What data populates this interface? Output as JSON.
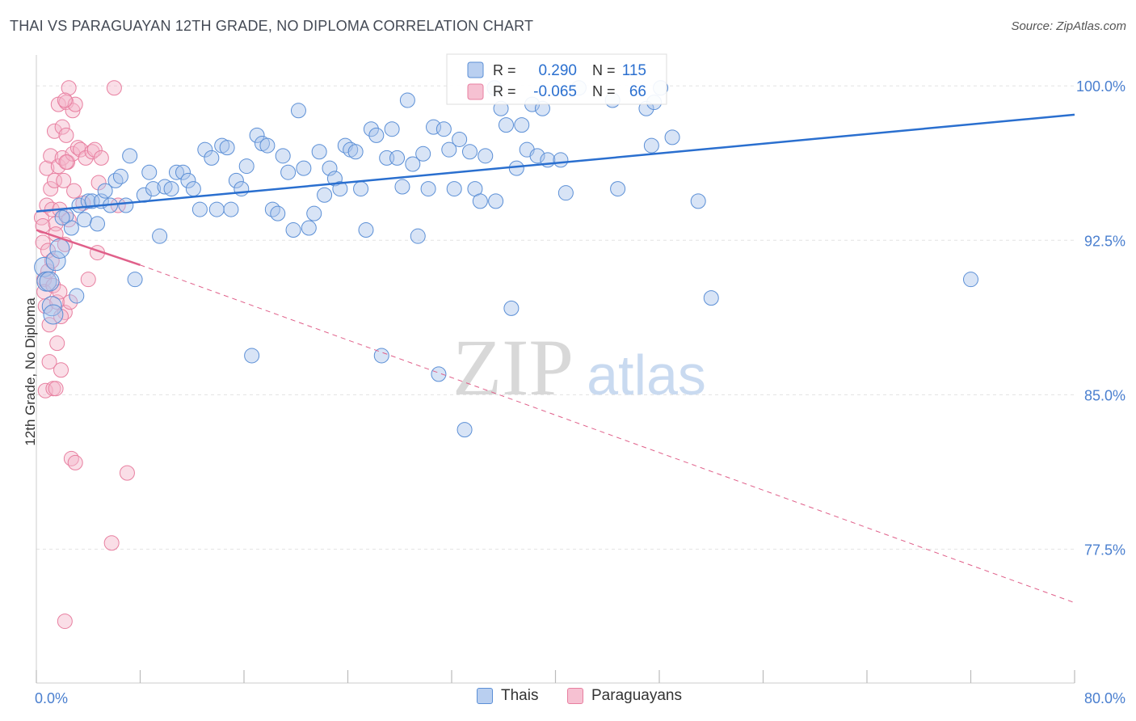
{
  "header": {
    "title": "THAI VS PARAGUAYAN 12TH GRADE, NO DIPLOMA CORRELATION CHART",
    "source": "Source: ZipAtlas.com"
  },
  "watermark": {
    "zip": "ZIP",
    "atlas": "atlas"
  },
  "colors": {
    "blue": "#5b8fd6",
    "blue_line": "#2a6fcf",
    "pink": "#e87fa0",
    "pink_line": "#e0608a",
    "axis_text": "#4a7fcf"
  },
  "legend_top": {
    "rows": [
      {
        "r_label": "R =",
        "r_value": "0.290",
        "n_label": "N =",
        "n_value": "115"
      },
      {
        "r_label": "R =",
        "r_value": "-0.065",
        "n_label": "N =",
        "n_value": "66"
      }
    ]
  },
  "legend_bottom": {
    "items": [
      "Thais",
      "Paraguayans"
    ]
  },
  "chart_data": {
    "type": "scatter",
    "title": "THAI VS PARAGUAYAN 12TH GRADE, NO DIPLOMA CORRELATION CHART",
    "xlabel": "",
    "ylabel": "12th Grade, No Diploma",
    "xlim": [
      0,
      80
    ],
    "ylim": [
      71.0,
      101.5
    ],
    "x_tick_labels": [
      "0.0%",
      "80.0%"
    ],
    "y_ticks": [
      100.0,
      92.5,
      85.0,
      77.5
    ],
    "y_tick_labels": [
      "100.0%",
      "92.5%",
      "85.0%",
      "77.5%"
    ],
    "grid": true,
    "series": [
      {
        "name": "Thais",
        "color": "#5b8fd6",
        "points": [
          [
            0.6,
            91.2
          ],
          [
            0.8,
            90.5
          ],
          [
            1.2,
            89.3
          ],
          [
            1.5,
            91.5
          ],
          [
            1.8,
            92.1
          ],
          [
            2.3,
            93.7
          ],
          [
            2.7,
            93.1
          ],
          [
            3.1,
            89.8
          ],
          [
            3.3,
            94.2
          ],
          [
            3.7,
            93.5
          ],
          [
            4.0,
            94.4
          ],
          [
            4.3,
            94.4
          ],
          [
            4.7,
            93.3
          ],
          [
            5.0,
            94.4
          ],
          [
            5.3,
            94.9
          ],
          [
            5.7,
            94.2
          ],
          [
            6.1,
            95.4
          ],
          [
            6.5,
            95.6
          ],
          [
            6.9,
            94.2
          ],
          [
            7.2,
            96.6
          ],
          [
            7.6,
            90.6
          ],
          [
            8.3,
            94.7
          ],
          [
            8.7,
            95.8
          ],
          [
            9.0,
            95.0
          ],
          [
            9.5,
            92.7
          ],
          [
            9.9,
            95.1
          ],
          [
            10.4,
            95.0
          ],
          [
            10.8,
            95.8
          ],
          [
            11.3,
            95.8
          ],
          [
            11.7,
            95.4
          ],
          [
            12.1,
            95.0
          ],
          [
            12.6,
            94.0
          ],
          [
            13.0,
            96.9
          ],
          [
            13.5,
            96.5
          ],
          [
            13.9,
            94.0
          ],
          [
            14.3,
            97.1
          ],
          [
            14.7,
            97.0
          ],
          [
            15.0,
            94.0
          ],
          [
            15.4,
            95.4
          ],
          [
            15.8,
            95.0
          ],
          [
            16.2,
            96.1
          ],
          [
            16.6,
            86.9
          ],
          [
            17.0,
            97.6
          ],
          [
            17.4,
            97.2
          ],
          [
            17.8,
            97.1
          ],
          [
            18.2,
            94.0
          ],
          [
            18.6,
            93.8
          ],
          [
            19.0,
            96.6
          ],
          [
            19.4,
            95.8
          ],
          [
            19.8,
            93.0
          ],
          [
            20.2,
            98.8
          ],
          [
            20.6,
            96.0
          ],
          [
            21.0,
            93.1
          ],
          [
            21.4,
            93.8
          ],
          [
            21.8,
            96.8
          ],
          [
            22.2,
            94.7
          ],
          [
            22.6,
            96.0
          ],
          [
            23.0,
            95.5
          ],
          [
            23.4,
            95.0
          ],
          [
            23.8,
            97.1
          ],
          [
            24.2,
            96.9
          ],
          [
            24.6,
            96.8
          ],
          [
            25.0,
            95.0
          ],
          [
            25.4,
            93.0
          ],
          [
            25.8,
            97.9
          ],
          [
            26.2,
            97.6
          ],
          [
            26.6,
            86.9
          ],
          [
            27.0,
            96.5
          ],
          [
            27.4,
            97.9
          ],
          [
            27.8,
            96.5
          ],
          [
            28.2,
            95.1
          ],
          [
            28.6,
            99.3
          ],
          [
            29.0,
            96.2
          ],
          [
            29.4,
            92.7
          ],
          [
            29.8,
            96.7
          ],
          [
            30.2,
            95.0
          ],
          [
            30.6,
            98.0
          ],
          [
            31.0,
            86.0
          ],
          [
            31.4,
            97.9
          ],
          [
            31.8,
            96.9
          ],
          [
            32.2,
            95.0
          ],
          [
            32.6,
            97.4
          ],
          [
            33.0,
            83.3
          ],
          [
            33.4,
            96.8
          ],
          [
            33.8,
            95.0
          ],
          [
            34.2,
            94.4
          ],
          [
            34.6,
            96.6
          ],
          [
            35.4,
            94.4
          ],
          [
            35.8,
            98.9
          ],
          [
            36.2,
            98.1
          ],
          [
            36.6,
            89.2
          ],
          [
            37.0,
            96.0
          ],
          [
            37.4,
            98.1
          ],
          [
            37.8,
            96.9
          ],
          [
            38.2,
            99.1
          ],
          [
            38.6,
            96.6
          ],
          [
            39.0,
            98.9
          ],
          [
            39.4,
            96.4
          ],
          [
            40.4,
            96.4
          ],
          [
            40.8,
            94.8
          ],
          [
            41.8,
            99.9
          ],
          [
            44.4,
            99.3
          ],
          [
            44.8,
            95.0
          ],
          [
            47.0,
            98.9
          ],
          [
            47.4,
            97.1
          ],
          [
            47.6,
            99.2
          ],
          [
            48.1,
            99.9
          ],
          [
            49.0,
            97.5
          ],
          [
            51.0,
            94.4
          ],
          [
            52.0,
            89.7
          ],
          [
            72.0,
            90.6
          ],
          [
            1.0,
            90.5
          ],
          [
            1.3,
            88.9
          ],
          [
            2.0,
            93.6
          ],
          [
            35.3,
            99.9
          ]
        ]
      },
      {
        "name": "Paraguayans",
        "color": "#e87fa0",
        "points": [
          [
            0.4,
            93.6
          ],
          [
            0.5,
            93.2
          ],
          [
            0.5,
            92.4
          ],
          [
            0.6,
            90.6
          ],
          [
            0.6,
            90.0
          ],
          [
            0.7,
            89.3
          ],
          [
            0.7,
            85.2
          ],
          [
            0.8,
            96.0
          ],
          [
            0.8,
            94.2
          ],
          [
            0.9,
            92.0
          ],
          [
            0.9,
            91.0
          ],
          [
            1.0,
            88.4
          ],
          [
            1.0,
            86.6
          ],
          [
            1.1,
            96.6
          ],
          [
            1.1,
            95.0
          ],
          [
            1.2,
            94.0
          ],
          [
            1.2,
            91.5
          ],
          [
            1.3,
            90.3
          ],
          [
            1.3,
            85.3
          ],
          [
            1.4,
            97.8
          ],
          [
            1.4,
            95.4
          ],
          [
            1.5,
            93.3
          ],
          [
            1.5,
            92.8
          ],
          [
            1.6,
            89.5
          ],
          [
            1.6,
            87.5
          ],
          [
            1.7,
            99.1
          ],
          [
            1.7,
            96.1
          ],
          [
            1.8,
            94.0
          ],
          [
            1.8,
            90.0
          ],
          [
            1.9,
            86.2
          ],
          [
            2.0,
            98.0
          ],
          [
            2.0,
            96.5
          ],
          [
            2.1,
            95.4
          ],
          [
            2.2,
            92.3
          ],
          [
            2.2,
            89.0
          ],
          [
            2.3,
            99.2
          ],
          [
            2.3,
            97.6
          ],
          [
            2.4,
            96.3
          ],
          [
            2.5,
            99.9
          ],
          [
            2.5,
            93.5
          ],
          [
            2.6,
            89.5
          ],
          [
            2.7,
            81.9
          ],
          [
            2.8,
            98.8
          ],
          [
            2.8,
            96.7
          ],
          [
            2.9,
            94.9
          ],
          [
            3.0,
            99.1
          ],
          [
            3.0,
            81.7
          ],
          [
            3.2,
            97.0
          ],
          [
            3.4,
            96.9
          ],
          [
            3.6,
            94.3
          ],
          [
            3.8,
            96.5
          ],
          [
            4.0,
            90.6
          ],
          [
            4.3,
            96.8
          ],
          [
            4.5,
            96.9
          ],
          [
            4.7,
            91.9
          ],
          [
            4.8,
            95.3
          ],
          [
            5.0,
            96.5
          ],
          [
            5.8,
            77.8
          ],
          [
            6.0,
            99.9
          ],
          [
            6.3,
            94.2
          ],
          [
            7.0,
            81.2
          ],
          [
            2.2,
            74.0
          ],
          [
            1.9,
            88.8
          ],
          [
            2.3,
            96.3
          ],
          [
            1.5,
            85.3
          ],
          [
            2.2,
            99.3
          ]
        ]
      }
    ],
    "trend_lines": [
      {
        "series": "Thais",
        "x": [
          0,
          80
        ],
        "y": [
          93.9,
          98.6
        ]
      },
      {
        "series": "Paraguayans",
        "x": [
          0,
          8
        ],
        "y": [
          93.0,
          91.3
        ],
        "dashed_extension": {
          "x": [
            8,
            80
          ],
          "y": [
            91.3,
            74.9
          ]
        }
      }
    ]
  }
}
